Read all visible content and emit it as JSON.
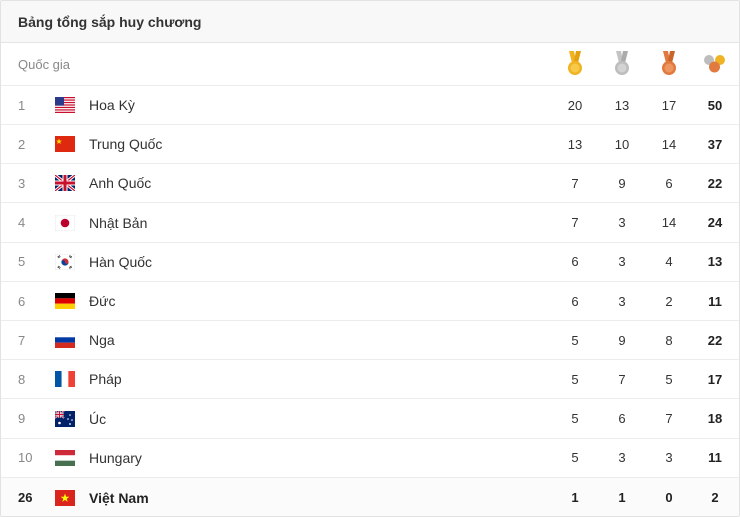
{
  "panel": {
    "title": "Bảng tổng sắp huy chương"
  },
  "table": {
    "country_header": "Quốc gia",
    "medal_icons": [
      "gold-medal-icon",
      "silver-medal-icon",
      "bronze-medal-icon",
      "total-medals-icon"
    ],
    "colors": {
      "gold": "#F0B323",
      "silver": "#BDBDBD",
      "bronze": "#E07A3F"
    },
    "rows": [
      {
        "rank": "1",
        "country": "Hoa Kỳ",
        "flag": "us-flag-icon",
        "gold": "20",
        "silver": "13",
        "bronze": "17",
        "total": "50"
      },
      {
        "rank": "2",
        "country": "Trung Quốc",
        "flag": "china-flag-icon",
        "gold": "13",
        "silver": "10",
        "bronze": "14",
        "total": "37"
      },
      {
        "rank": "3",
        "country": "Anh Quốc",
        "flag": "uk-flag-icon",
        "gold": "7",
        "silver": "9",
        "bronze": "6",
        "total": "22"
      },
      {
        "rank": "4",
        "country": "Nhật Bản",
        "flag": "japan-flag-icon",
        "gold": "7",
        "silver": "3",
        "bronze": "14",
        "total": "24"
      },
      {
        "rank": "5",
        "country": "Hàn Quốc",
        "flag": "south-korea-flag-icon",
        "gold": "6",
        "silver": "3",
        "bronze": "4",
        "total": "13"
      },
      {
        "rank": "6",
        "country": "Đức",
        "flag": "germany-flag-icon",
        "gold": "6",
        "silver": "3",
        "bronze": "2",
        "total": "11"
      },
      {
        "rank": "7",
        "country": "Nga",
        "flag": "russia-flag-icon",
        "gold": "5",
        "silver": "9",
        "bronze": "8",
        "total": "22"
      },
      {
        "rank": "8",
        "country": "Pháp",
        "flag": "france-flag-icon",
        "gold": "5",
        "silver": "7",
        "bronze": "5",
        "total": "17"
      },
      {
        "rank": "9",
        "country": "Úc",
        "flag": "australia-flag-icon",
        "gold": "5",
        "silver": "6",
        "bronze": "7",
        "total": "18"
      },
      {
        "rank": "10",
        "country": "Hungary",
        "flag": "hungary-flag-icon",
        "gold": "5",
        "silver": "3",
        "bronze": "3",
        "total": "11"
      },
      {
        "rank": "26",
        "country": "Việt Nam",
        "flag": "vietnam-flag-icon",
        "gold": "1",
        "silver": "1",
        "bronze": "0",
        "total": "2"
      }
    ]
  }
}
